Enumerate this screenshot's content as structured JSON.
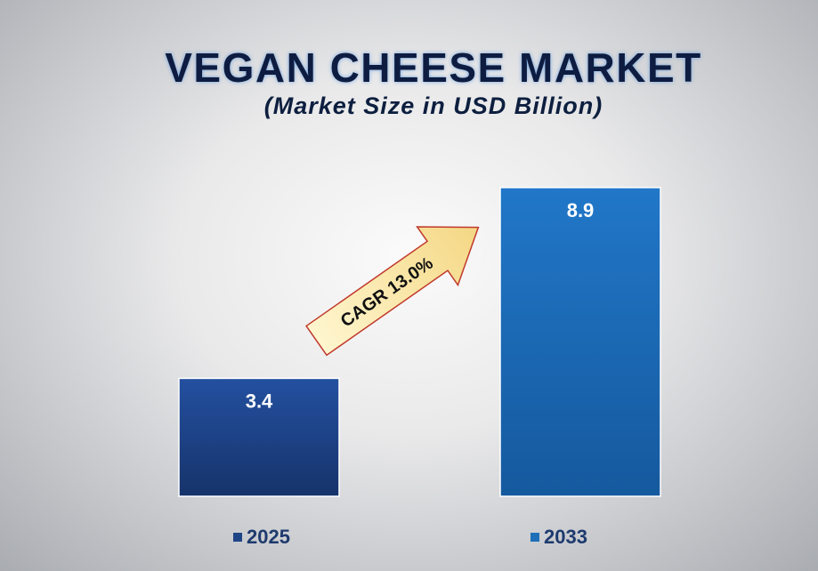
{
  "chart_data": {
    "type": "bar",
    "title": "VEGAN CHEESE MARKET",
    "subtitle": "(Market Size in USD Billion)",
    "categories": [
      "2025",
      "2033"
    ],
    "values": [
      3.4,
      8.9
    ],
    "value_labels": [
      "3.4",
      "8.9"
    ],
    "ylim": [
      0,
      10
    ],
    "grid": false,
    "legend": {
      "placement": "bottom",
      "entries": [
        "2025",
        "2033"
      ]
    },
    "annotation": "CAGR 13.0%",
    "colors": {
      "series": [
        "#1f4486",
        "#1d6fb8"
      ],
      "arrow_fill": "#fbe9a3",
      "title": "#0d1f3f"
    }
  }
}
